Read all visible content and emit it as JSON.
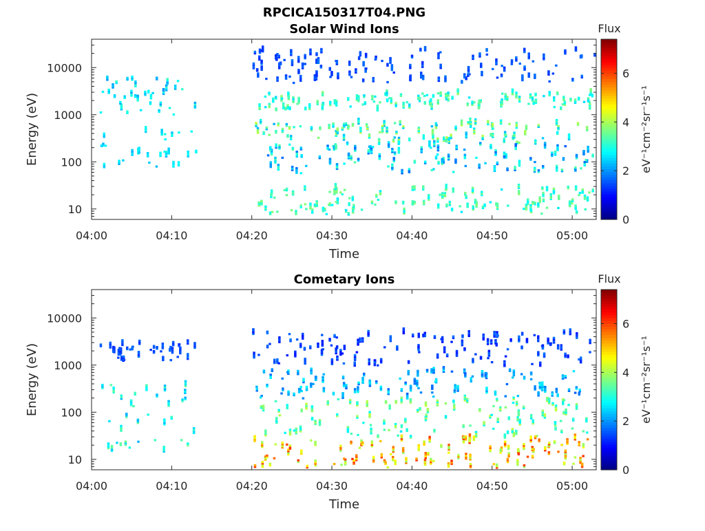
{
  "figure_title": "RPCICA150317T04.PNG",
  "chart_data": [
    {
      "type": "heatmap",
      "title": "Solar Wind Ions",
      "xlabel": "Time",
      "ylabel": "Energy (eV)",
      "y_scale": "log",
      "x_range": [
        "04:00",
        "05:03"
      ],
      "ylim": [
        6,
        40000
      ],
      "xticks": [
        "04:00",
        "04:10",
        "04:20",
        "04:30",
        "04:40",
        "04:50",
        "05:00"
      ],
      "yticks": [
        "10",
        "100",
        "1000",
        "10000"
      ],
      "colorbar": {
        "label": "Flux",
        "units": "eV⁻¹cm⁻²sr⁻¹s⁻¹",
        "ticks": [
          "0",
          "2",
          "4",
          "6"
        ],
        "range": [
          0,
          7.4
        ],
        "colormap": "jet"
      },
      "seed": 11,
      "grid": false,
      "time_coverage_gaps": [
        [
          "04:13",
          "04:19"
        ]
      ],
      "clusters": [
        {
          "t": [
            "04:01",
            "04:13"
          ],
          "e": [
            1000,
            6000
          ],
          "v": [
            2.0,
            3.2
          ]
        },
        {
          "t": [
            "04:01",
            "04:13"
          ],
          "e": [
            80,
            500
          ],
          "v": [
            2.2,
            3.0
          ]
        },
        {
          "t": [
            "04:20",
            "05:03"
          ],
          "e": [
            1300,
            3000
          ],
          "v": [
            2.5,
            3.8
          ]
        },
        {
          "t": [
            "04:20",
            "05:03"
          ],
          "e": [
            250,
            700
          ],
          "v": [
            2.2,
            4.2
          ]
        },
        {
          "t": [
            "04:20",
            "05:03"
          ],
          "e": [
            60,
            250
          ],
          "v": [
            1.6,
            3.4
          ]
        },
        {
          "t": [
            "04:20",
            "05:03"
          ],
          "e": [
            8,
            30
          ],
          "v": [
            2.6,
            3.8
          ]
        },
        {
          "t": [
            "04:20",
            "05:03"
          ],
          "e": [
            5000,
            25000
          ],
          "v": [
            1.2,
            1.8
          ]
        }
      ]
    },
    {
      "type": "heatmap",
      "title": "Cometary Ions",
      "xlabel": "Time",
      "ylabel": "Energy (eV)",
      "y_scale": "log",
      "x_range": [
        "04:00",
        "05:03"
      ],
      "ylim": [
        6,
        40000
      ],
      "xticks": [
        "04:00",
        "04:10",
        "04:20",
        "04:30",
        "04:40",
        "04:50",
        "05:00"
      ],
      "yticks": [
        "10",
        "100",
        "1000",
        "10000"
      ],
      "colorbar": {
        "label": "Flux",
        "units": "eV⁻¹cm⁻²sr⁻¹s⁻¹",
        "ticks": [
          "0",
          "2",
          "4",
          "6"
        ],
        "range": [
          0,
          7.4
        ],
        "colormap": "jet"
      },
      "seed": 27,
      "grid": false,
      "time_coverage_gaps": [
        [
          "04:13",
          "04:19"
        ]
      ],
      "clusters": [
        {
          "t": [
            "04:01",
            "04:13"
          ],
          "e": [
            1300,
            3200
          ],
          "v": [
            1.2,
            1.8
          ]
        },
        {
          "t": [
            "04:01",
            "04:13"
          ],
          "e": [
            15,
            400
          ],
          "v": [
            2.2,
            3.6
          ]
        },
        {
          "t": [
            "04:20",
            "05:03"
          ],
          "e": [
            1000,
            5000
          ],
          "v": [
            1.0,
            1.8
          ]
        },
        {
          "t": [
            "04:20",
            "05:03"
          ],
          "e": [
            200,
            800
          ],
          "v": [
            1.6,
            2.8
          ]
        },
        {
          "t": [
            "04:20",
            "05:03"
          ],
          "e": [
            30,
            200
          ],
          "v": [
            2.6,
            4.2
          ]
        },
        {
          "t": [
            "04:20",
            "05:03"
          ],
          "e": [
            7,
            30
          ],
          "v": [
            3.8,
            6.2
          ]
        }
      ]
    }
  ]
}
